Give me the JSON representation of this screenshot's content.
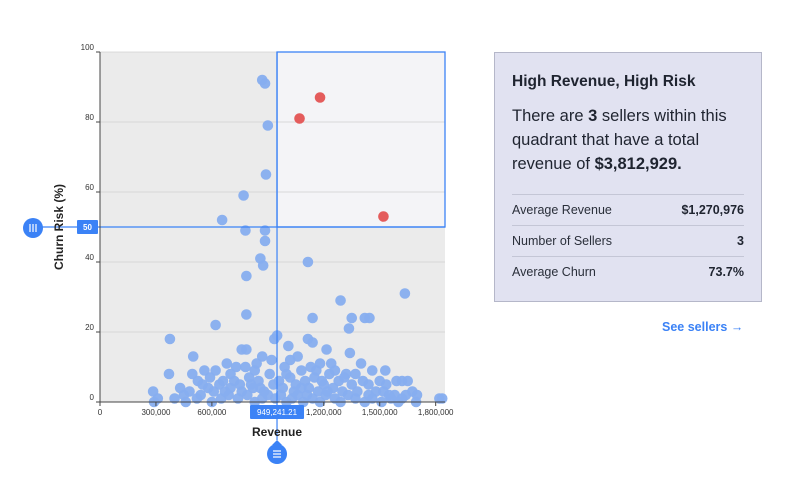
{
  "card": {
    "title": "High Revenue, High Risk",
    "desc_prefix": "There are ",
    "seller_count": "3",
    "desc_middle": " sellers within this quadrant that have a total revenue of ",
    "total_revenue": "$3,812,929.",
    "stats": [
      {
        "label": "Average Revenue",
        "value": "$1,270,976"
      },
      {
        "label": "Number of Sellers",
        "value": "3"
      },
      {
        "label": "Average Churn",
        "value": "73.7%"
      }
    ]
  },
  "link": {
    "label": "See sellers",
    "arrow": "→"
  },
  "colors": {
    "point": "#87aeef",
    "highlight": "#e45c5c",
    "accent": "#3b82f6",
    "plot_bg": "#ebebeb",
    "quadrant_bg": "#f4f4f7"
  },
  "chart_data": {
    "type": "scatter",
    "xlabel": "Revenue",
    "ylabel": "Churn Risk (%)",
    "xlim": [
      0,
      1850000
    ],
    "ylim": [
      0,
      100
    ],
    "x_ticks": [
      0,
      300000,
      600000,
      1200000,
      1500000,
      1800000
    ],
    "x_tick_labels": [
      "0",
      "300,000",
      "600,000",
      "1,200,000",
      "1,500,000",
      "1,800,000"
    ],
    "y_ticks": [
      0,
      20,
      40,
      60,
      80,
      100
    ],
    "y_tick_labels": [
      "0",
      "20",
      "40",
      "60",
      "80",
      "100"
    ],
    "threshold_x": 949241.21,
    "threshold_x_label": "949,241.21",
    "threshold_y": 50,
    "threshold_y_label": "50",
    "highlighted_points": [
      {
        "x": 1070000,
        "y": 81
      },
      {
        "x": 1180000,
        "y": 87
      },
      {
        "x": 1520000,
        "y": 53
      }
    ],
    "points": [
      {
        "x": 870000,
        "y": 92
      },
      {
        "x": 885000,
        "y": 91
      },
      {
        "x": 900000,
        "y": 79
      },
      {
        "x": 890000,
        "y": 65
      },
      {
        "x": 770000,
        "y": 59
      },
      {
        "x": 655000,
        "y": 52
      },
      {
        "x": 780000,
        "y": 49
      },
      {
        "x": 885000,
        "y": 49
      },
      {
        "x": 885000,
        "y": 46
      },
      {
        "x": 860000,
        "y": 41
      },
      {
        "x": 875000,
        "y": 39
      },
      {
        "x": 1115000,
        "y": 40
      },
      {
        "x": 785000,
        "y": 36
      },
      {
        "x": 1290000,
        "y": 29
      },
      {
        "x": 1635000,
        "y": 31
      },
      {
        "x": 785000,
        "y": 25
      },
      {
        "x": 620000,
        "y": 22
      },
      {
        "x": 1350000,
        "y": 24
      },
      {
        "x": 1140000,
        "y": 24
      },
      {
        "x": 1420000,
        "y": 24
      },
      {
        "x": 1445000,
        "y": 24
      },
      {
        "x": 1335000,
        "y": 21
      },
      {
        "x": 375000,
        "y": 18
      },
      {
        "x": 935000,
        "y": 18
      },
      {
        "x": 950000,
        "y": 19
      },
      {
        "x": 1115000,
        "y": 18
      },
      {
        "x": 1140000,
        "y": 17
      },
      {
        "x": 1010000,
        "y": 16
      },
      {
        "x": 760000,
        "y": 15
      },
      {
        "x": 785000,
        "y": 15
      },
      {
        "x": 1215000,
        "y": 15
      },
      {
        "x": 500000,
        "y": 13
      },
      {
        "x": 1340000,
        "y": 14
      },
      {
        "x": 1060000,
        "y": 13
      },
      {
        "x": 870000,
        "y": 13
      },
      {
        "x": 680000,
        "y": 11
      },
      {
        "x": 730000,
        "y": 10
      },
      {
        "x": 840000,
        "y": 11
      },
      {
        "x": 1180000,
        "y": 11
      },
      {
        "x": 1400000,
        "y": 11
      },
      {
        "x": 560000,
        "y": 9
      },
      {
        "x": 620000,
        "y": 9
      },
      {
        "x": 1460000,
        "y": 9
      },
      {
        "x": 1530000,
        "y": 9
      },
      {
        "x": 1000000,
        "y": 8
      },
      {
        "x": 1320000,
        "y": 8
      },
      {
        "x": 370000,
        "y": 8
      },
      {
        "x": 495000,
        "y": 8
      },
      {
        "x": 1590000,
        "y": 6
      },
      {
        "x": 1620000,
        "y": 6
      },
      {
        "x": 1650000,
        "y": 6
      },
      {
        "x": 1440000,
        "y": 5
      },
      {
        "x": 525000,
        "y": 6
      },
      {
        "x": 660000,
        "y": 6
      },
      {
        "x": 1280000,
        "y": 6
      },
      {
        "x": 1535000,
        "y": 5
      },
      {
        "x": 1675000,
        "y": 3
      },
      {
        "x": 1700000,
        "y": 2
      },
      {
        "x": 1820000,
        "y": 1
      },
      {
        "x": 1835000,
        "y": 1
      },
      {
        "x": 285000,
        "y": 3
      },
      {
        "x": 310000,
        "y": 1
      },
      {
        "x": 290000,
        "y": 0
      },
      {
        "x": 1580000,
        "y": 2
      },
      {
        "x": 1620000,
        "y": 1
      },
      {
        "x": 1695000,
        "y": 0
      },
      {
        "x": 430000,
        "y": 4
      },
      {
        "x": 450000,
        "y": 2
      },
      {
        "x": 480000,
        "y": 3
      },
      {
        "x": 540000,
        "y": 2
      },
      {
        "x": 580000,
        "y": 4
      },
      {
        "x": 610000,
        "y": 3
      },
      {
        "x": 640000,
        "y": 5
      },
      {
        "x": 700000,
        "y": 4
      },
      {
        "x": 720000,
        "y": 6
      },
      {
        "x": 760000,
        "y": 3
      },
      {
        "x": 800000,
        "y": 7
      },
      {
        "x": 820000,
        "y": 4
      },
      {
        "x": 850000,
        "y": 6
      },
      {
        "x": 880000,
        "y": 3
      },
      {
        "x": 910000,
        "y": 8
      },
      {
        "x": 930000,
        "y": 5
      },
      {
        "x": 960000,
        "y": 6
      },
      {
        "x": 980000,
        "y": 4
      },
      {
        "x": 1020000,
        "y": 7
      },
      {
        "x": 1040000,
        "y": 3
      },
      {
        "x": 1080000,
        "y": 9
      },
      {
        "x": 1100000,
        "y": 6
      },
      {
        "x": 1120000,
        "y": 4
      },
      {
        "x": 1150000,
        "y": 7
      },
      {
        "x": 1170000,
        "y": 3
      },
      {
        "x": 1200000,
        "y": 5
      },
      {
        "x": 1230000,
        "y": 8
      },
      {
        "x": 1250000,
        "y": 4
      },
      {
        "x": 1300000,
        "y": 3
      },
      {
        "x": 1350000,
        "y": 5
      },
      {
        "x": 1380000,
        "y": 3
      },
      {
        "x": 1410000,
        "y": 6
      },
      {
        "x": 1480000,
        "y": 3
      },
      {
        "x": 1500000,
        "y": 6
      },
      {
        "x": 1550000,
        "y": 2
      },
      {
        "x": 400000,
        "y": 1
      },
      {
        "x": 460000,
        "y": 0
      },
      {
        "x": 520000,
        "y": 1
      },
      {
        "x": 600000,
        "y": 0
      },
      {
        "x": 650000,
        "y": 1
      },
      {
        "x": 690000,
        "y": 2
      },
      {
        "x": 740000,
        "y": 1
      },
      {
        "x": 790000,
        "y": 2
      },
      {
        "x": 830000,
        "y": 0
      },
      {
        "x": 870000,
        "y": 1
      },
      {
        "x": 900000,
        "y": 2
      },
      {
        "x": 940000,
        "y": 1
      },
      {
        "x": 970000,
        "y": 2
      },
      {
        "x": 1000000,
        "y": 0
      },
      {
        "x": 1030000,
        "y": 1
      },
      {
        "x": 1060000,
        "y": 2
      },
      {
        "x": 1090000,
        "y": 0
      },
      {
        "x": 1110000,
        "y": 2
      },
      {
        "x": 1140000,
        "y": 1
      },
      {
        "x": 1180000,
        "y": 0
      },
      {
        "x": 1210000,
        "y": 2
      },
      {
        "x": 1260000,
        "y": 1
      },
      {
        "x": 1290000,
        "y": 0
      },
      {
        "x": 1330000,
        "y": 2
      },
      {
        "x": 1370000,
        "y": 1
      },
      {
        "x": 1420000,
        "y": 0
      },
      {
        "x": 1460000,
        "y": 1
      },
      {
        "x": 1510000,
        "y": 0
      },
      {
        "x": 1560000,
        "y": 1
      },
      {
        "x": 1600000,
        "y": 0
      },
      {
        "x": 1640000,
        "y": 2
      },
      {
        "x": 700000,
        "y": 8
      },
      {
        "x": 750000,
        "y": 5
      },
      {
        "x": 830000,
        "y": 9
      },
      {
        "x": 860000,
        "y": 4
      },
      {
        "x": 990000,
        "y": 10
      },
      {
        "x": 1050000,
        "y": 5
      },
      {
        "x": 1130000,
        "y": 10
      },
      {
        "x": 1190000,
        "y": 6
      },
      {
        "x": 1240000,
        "y": 11
      },
      {
        "x": 1310000,
        "y": 7
      },
      {
        "x": 1260000,
        "y": 9
      },
      {
        "x": 1370000,
        "y": 8
      },
      {
        "x": 780000,
        "y": 10
      },
      {
        "x": 920000,
        "y": 12
      },
      {
        "x": 1020000,
        "y": 12
      },
      {
        "x": 1080000,
        "y": 4
      },
      {
        "x": 550000,
        "y": 5
      },
      {
        "x": 590000,
        "y": 7
      },
      {
        "x": 670000,
        "y": 3
      },
      {
        "x": 810000,
        "y": 5
      },
      {
        "x": 1160000,
        "y": 9
      },
      {
        "x": 1220000,
        "y": 3
      },
      {
        "x": 1440000,
        "y": 2
      },
      {
        "x": 1520000,
        "y": 3
      }
    ]
  }
}
